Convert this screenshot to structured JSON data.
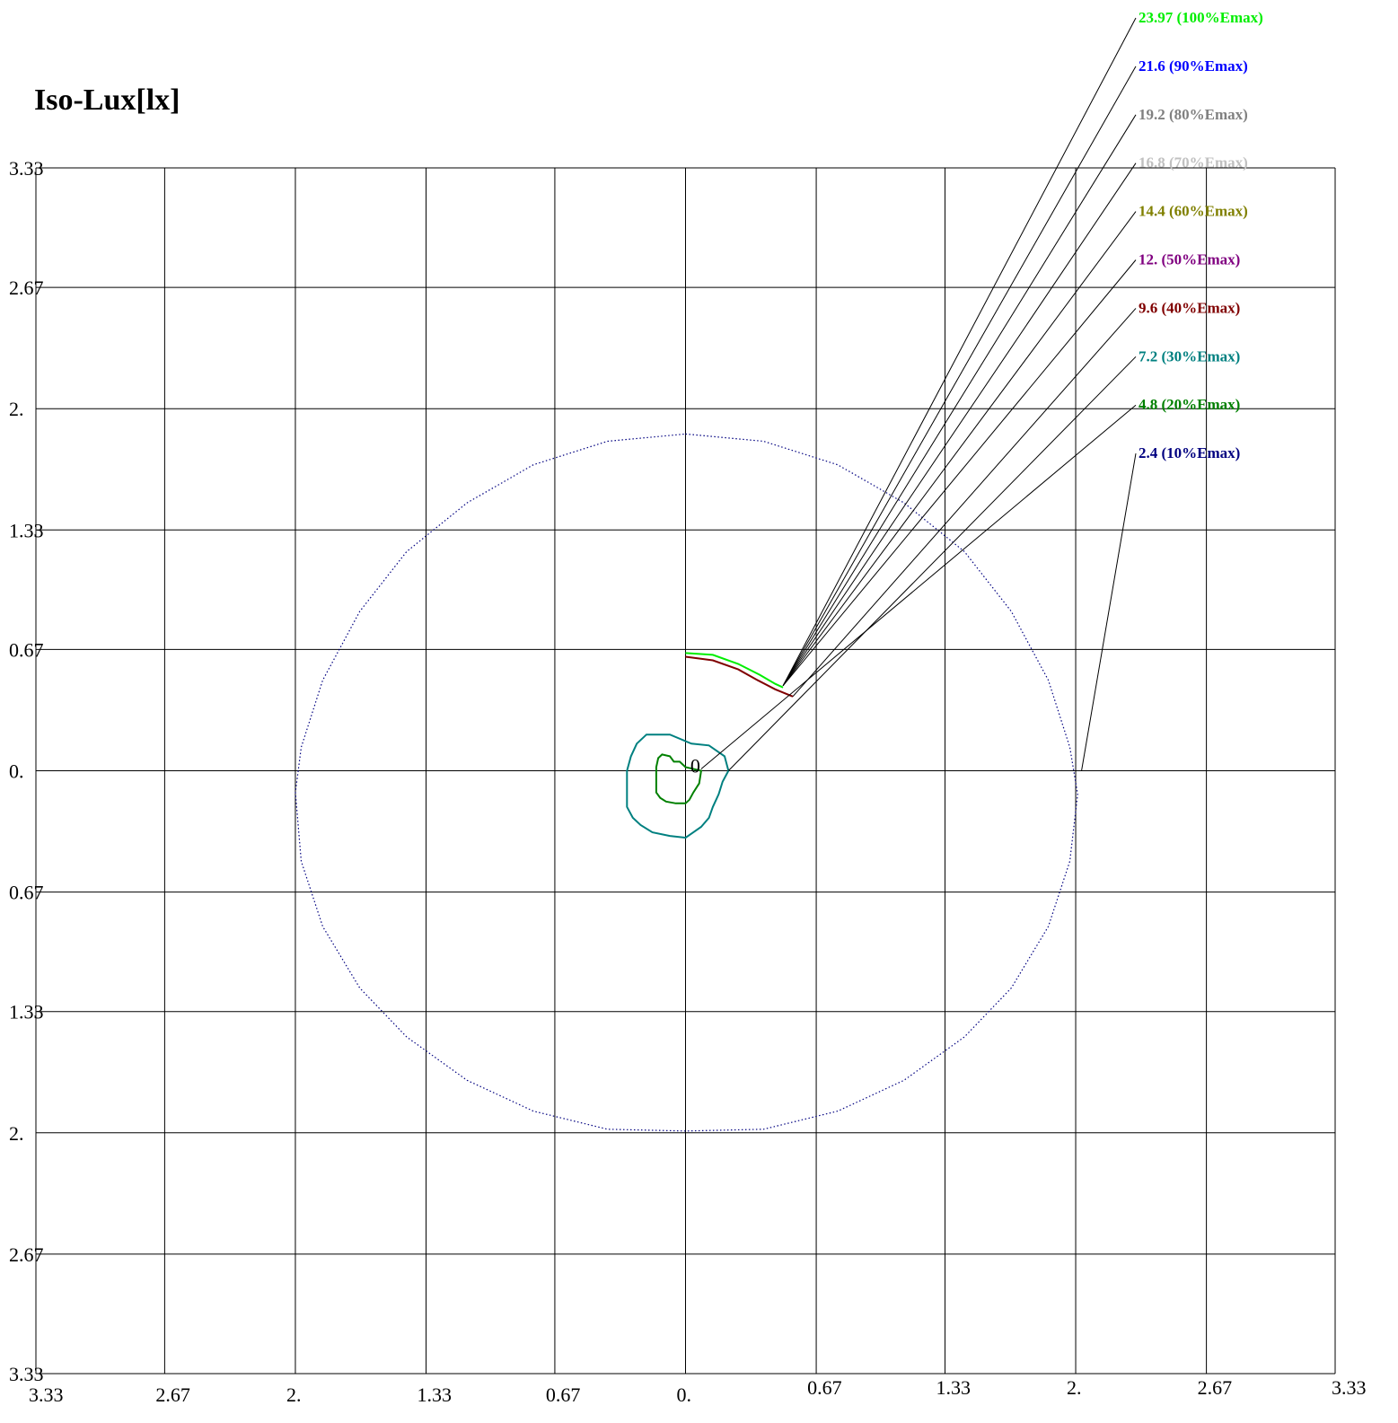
{
  "chart_data": {
    "type": "line",
    "title": "Iso-Lux[lx]",
    "xlabel": "",
    "ylabel": "",
    "xlim": [
      -3.33,
      3.33
    ],
    "ylim": [
      -3.33,
      3.33
    ],
    "grid": true,
    "legend_placement": "top-right",
    "x_tick_labels": [
      "3.33",
      "2.67",
      "2.",
      "1.33",
      "0.67",
      "0.",
      "0.67",
      "1.33",
      "2.",
      "2.67",
      "3.33"
    ],
    "y_tick_labels": [
      "3.33",
      "2.67",
      "2.",
      "1.33",
      "0.67",
      "0.",
      "0.67",
      "1.33",
      "2.",
      "2.67",
      "3.33"
    ],
    "x_ticks": [
      -3.33,
      -2.67,
      -2.0,
      -1.33,
      -0.67,
      0.0,
      0.67,
      1.33,
      2.0,
      2.67,
      3.33
    ],
    "y_ticks": [
      3.33,
      2.67,
      2.0,
      1.33,
      0.67,
      0.0,
      -0.67,
      -1.33,
      -2.0,
      -2.67,
      -3.33
    ],
    "origin_label": "0",
    "origin_point": [
      0.08,
      -0.08
    ],
    "levels": [
      {
        "label": "23.97  (100%Emax)",
        "value": 23.97,
        "percent": 100,
        "color": "#00ee00",
        "anchor": [
          0.5,
          0.47
        ]
      },
      {
        "label": "21.6  (90%Emax)",
        "value": 21.6,
        "percent": 90,
        "color": "#0000ff",
        "anchor": [
          0.5,
          0.47
        ]
      },
      {
        "label": "19.2  (80%Emax)",
        "value": 19.2,
        "percent": 80,
        "color": "#808080",
        "anchor": [
          0.5,
          0.47
        ]
      },
      {
        "label": "16.8  (70%Emax)",
        "value": 16.8,
        "percent": 70,
        "color": "#c0c0c0",
        "anchor": [
          0.5,
          0.47
        ]
      },
      {
        "label": "14.4  (60%Emax)",
        "value": 14.4,
        "percent": 60,
        "color": "#808000",
        "anchor": [
          0.5,
          0.47
        ]
      },
      {
        "label": "12.  (50%Emax)",
        "value": 12.0,
        "percent": 50,
        "color": "#800080",
        "anchor": [
          0.5,
          0.47
        ]
      },
      {
        "label": "9.6  (40%Emax)",
        "value": 9.6,
        "percent": 40,
        "color": "#800000",
        "anchor": [
          0.55,
          0.41
        ]
      },
      {
        "label": "7.2  (30%Emax)",
        "value": 7.2,
        "percent": 30,
        "color": "#008080",
        "anchor": [
          0.22,
          0.0
        ]
      },
      {
        "label": "4.8  (20%Emax)",
        "value": 4.8,
        "percent": 20,
        "color": "#008000",
        "anchor": [
          0.08,
          0.01
        ]
      },
      {
        "label": "2.4  (10%Emax)",
        "value": 2.4,
        "percent": 10,
        "color": "#000080",
        "anchor": [
          2.03,
          0.0
        ]
      }
    ],
    "contours": [
      {
        "level": 2.4,
        "color": "#000080",
        "dotted": true,
        "closed": true,
        "points": [
          [
            0.0,
            1.86
          ],
          [
            0.4,
            1.82
          ],
          [
            0.78,
            1.69
          ],
          [
            1.12,
            1.48
          ],
          [
            1.43,
            1.21
          ],
          [
            1.67,
            0.88
          ],
          [
            1.86,
            0.5
          ],
          [
            1.97,
            0.13
          ],
          [
            2.01,
            -0.13
          ],
          [
            1.97,
            -0.5
          ],
          [
            1.86,
            -0.86
          ],
          [
            1.67,
            -1.2
          ],
          [
            1.43,
            -1.47
          ],
          [
            1.12,
            -1.71
          ],
          [
            0.78,
            -1.88
          ],
          [
            0.4,
            -1.98
          ],
          [
            0.0,
            -1.99
          ],
          [
            -0.4,
            -1.98
          ],
          [
            -0.78,
            -1.88
          ],
          [
            -1.12,
            -1.71
          ],
          [
            -1.43,
            -1.47
          ],
          [
            -1.67,
            -1.2
          ],
          [
            -1.86,
            -0.86
          ],
          [
            -1.97,
            -0.5
          ],
          [
            -2.0,
            -0.12
          ],
          [
            -1.97,
            0.13
          ],
          [
            -1.86,
            0.5
          ],
          [
            -1.67,
            0.88
          ],
          [
            -1.43,
            1.21
          ],
          [
            -1.12,
            1.48
          ],
          [
            -0.78,
            1.69
          ],
          [
            -0.4,
            1.82
          ]
        ]
      },
      {
        "level": 7.2,
        "color": "#008080",
        "closed": true,
        "points": [
          [
            -0.2,
            0.2
          ],
          [
            -0.08,
            0.2
          ],
          [
            0.03,
            0.15
          ],
          [
            0.12,
            0.14
          ],
          [
            0.2,
            0.08
          ],
          [
            0.22,
            0.0
          ],
          [
            0.19,
            -0.06
          ],
          [
            0.17,
            -0.13
          ],
          [
            0.14,
            -0.2
          ],
          [
            0.12,
            -0.26
          ],
          [
            0.08,
            -0.31
          ],
          [
            0.04,
            -0.34
          ],
          [
            0.0,
            -0.37
          ],
          [
            -0.08,
            -0.36
          ],
          [
            -0.17,
            -0.34
          ],
          [
            -0.23,
            -0.3
          ],
          [
            -0.27,
            -0.26
          ],
          [
            -0.3,
            -0.2
          ],
          [
            -0.3,
            -0.1
          ],
          [
            -0.3,
            0.0
          ],
          [
            -0.28,
            0.08
          ],
          [
            -0.25,
            0.15
          ]
        ]
      },
      {
        "level": 4.8,
        "color": "#008000",
        "closed": true,
        "points": [
          [
            -0.12,
            0.09
          ],
          [
            -0.08,
            0.08
          ],
          [
            -0.06,
            0.05
          ],
          [
            -0.03,
            0.05
          ],
          [
            0.0,
            0.02
          ],
          [
            0.04,
            0.01
          ],
          [
            0.08,
            0.0
          ],
          [
            0.07,
            -0.07
          ],
          [
            0.04,
            -0.12
          ],
          [
            0.02,
            -0.16
          ],
          [
            0.0,
            -0.18
          ],
          [
            -0.05,
            -0.18
          ],
          [
            -0.1,
            -0.17
          ],
          [
            -0.13,
            -0.15
          ],
          [
            -0.15,
            -0.12
          ],
          [
            -0.15,
            -0.05
          ],
          [
            -0.15,
            0.02
          ],
          [
            -0.14,
            0.07
          ]
        ]
      },
      {
        "level": 9.6,
        "color": "#800000",
        "closed": false,
        "points": [
          [
            0.0,
            0.63
          ],
          [
            0.14,
            0.61
          ],
          [
            0.27,
            0.56
          ],
          [
            0.37,
            0.5
          ],
          [
            0.46,
            0.45
          ],
          [
            0.55,
            0.41
          ]
        ]
      },
      {
        "level": 23.97,
        "color": "#00ee00",
        "closed": false,
        "points": [
          [
            0.0,
            0.65
          ],
          [
            0.14,
            0.64
          ],
          [
            0.27,
            0.59
          ],
          [
            0.38,
            0.53
          ],
          [
            0.46,
            0.48
          ],
          [
            0.5,
            0.46
          ]
        ]
      }
    ]
  }
}
